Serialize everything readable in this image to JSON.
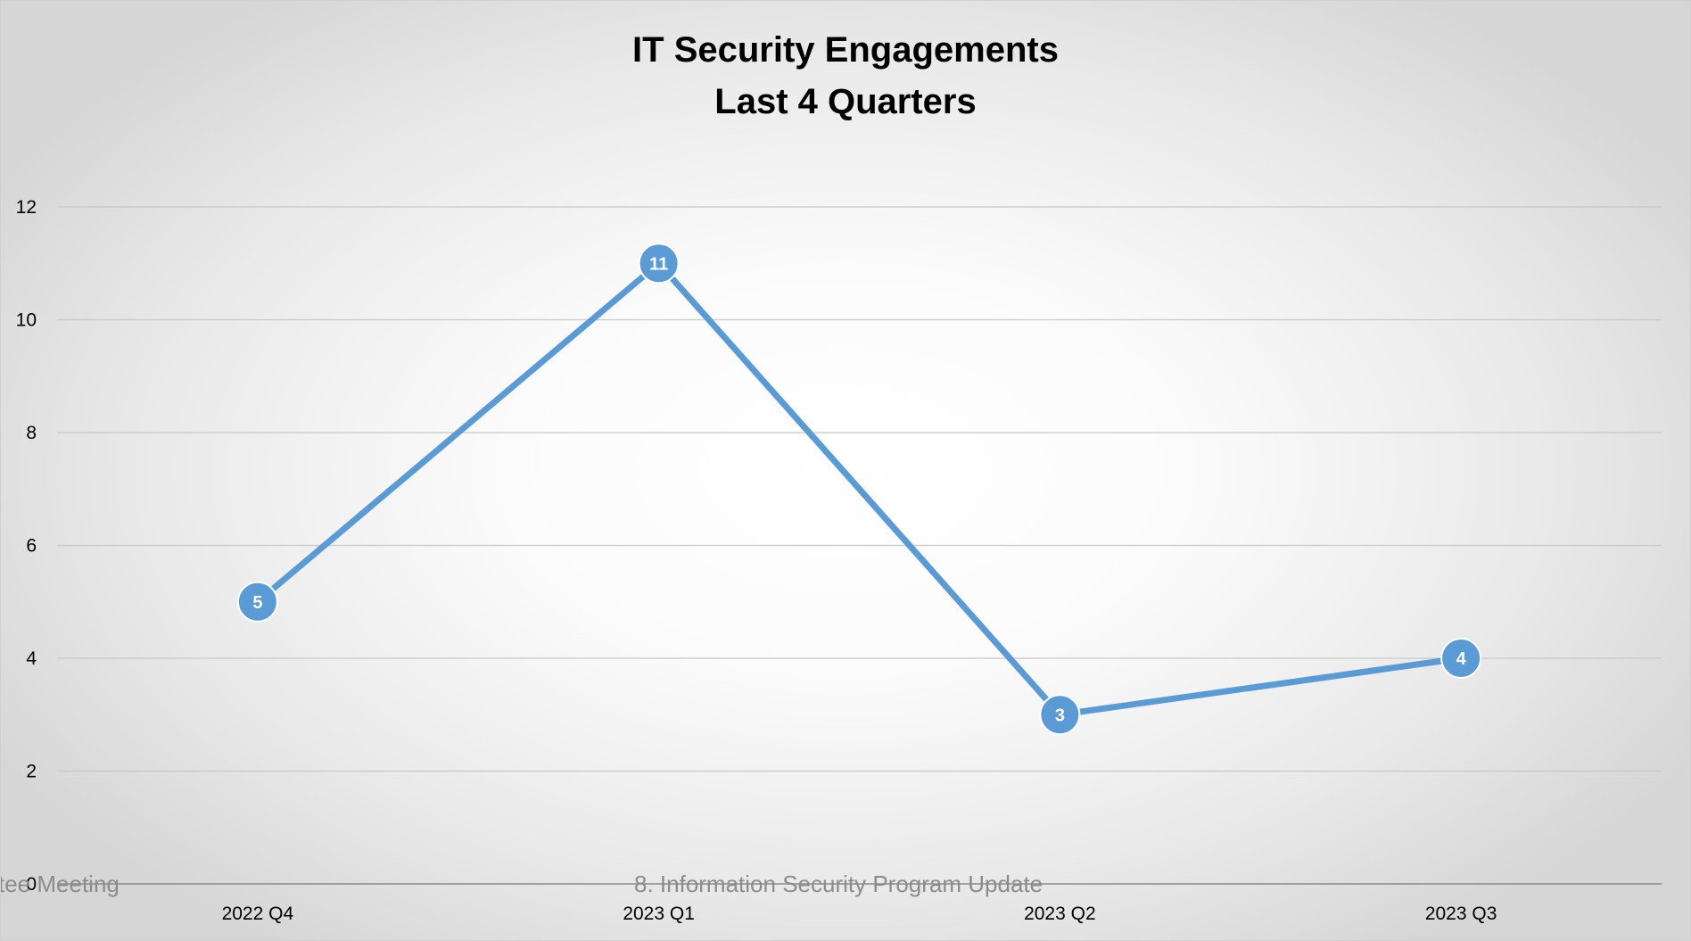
{
  "chart_data": {
    "type": "line",
    "title_line1": "IT Security Engagements",
    "title_line2": "Last 4 Quarters",
    "categories": [
      "2022 Q4",
      "2023 Q1",
      "2023 Q2",
      "2023 Q3"
    ],
    "series": [
      {
        "values": [
          5,
          11,
          3,
          4
        ],
        "color": "#5B9BD5"
      }
    ],
    "ylim": [
      0,
      12
    ],
    "yticks": [
      "0",
      "2",
      "4",
      "6",
      "8",
      "10",
      "12"
    ],
    "grid": true,
    "data_labels": true
  },
  "footer": {
    "left": "ittee Meeting",
    "center": "8. Information Security Program Update"
  }
}
